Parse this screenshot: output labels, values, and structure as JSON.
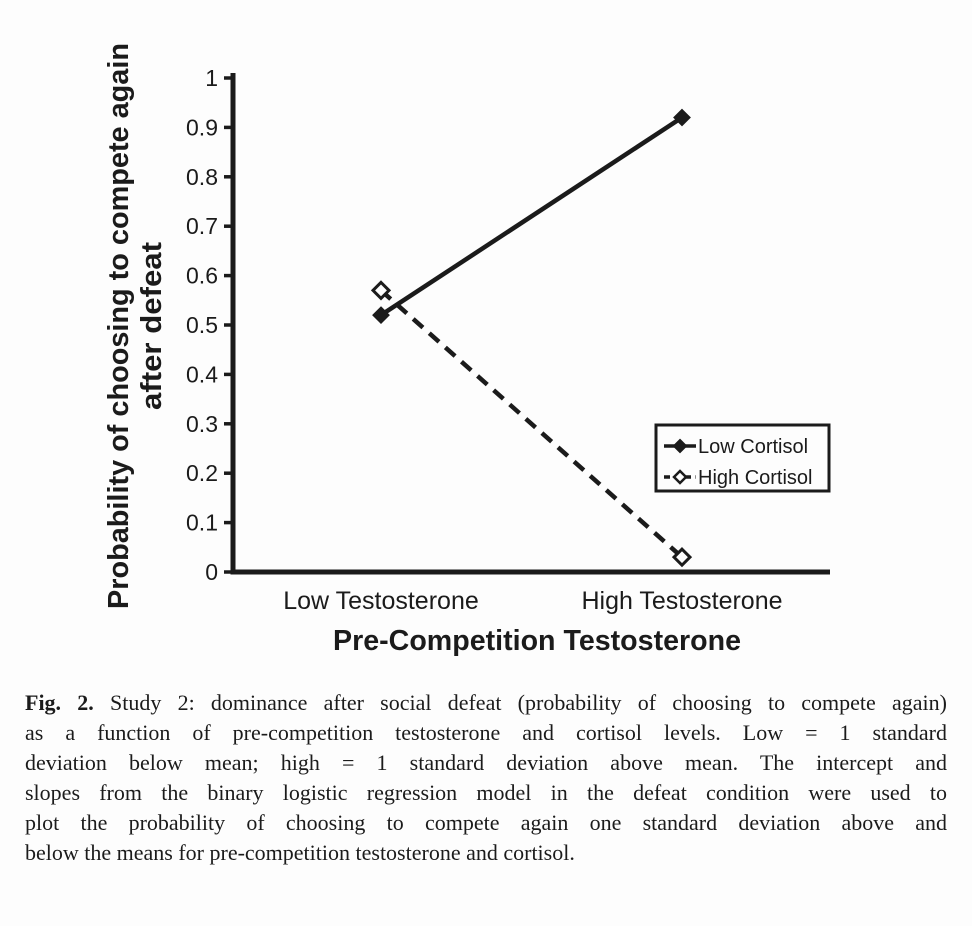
{
  "figure": {
    "caption_label": "Fig. 2.",
    "caption_line1": "Study 2: dominance after social defeat (probability of choosing to compete again)",
    "caption_lines": [
      "as a function of pre-competition testosterone and cortisol levels. Low = 1 standard",
      "deviation below mean; high = 1 standard deviation above mean. The intercept and",
      "slopes from the binary logistic regression model in the defeat condition were used to",
      "plot the probability of choosing to compete again one standard deviation above and",
      "below the means for pre-competition testosterone and cortisol."
    ]
  },
  "chart_data": {
    "type": "line",
    "categories": [
      "Low Testosterone",
      "High Testosterone"
    ],
    "series": [
      {
        "name": "Low Cortisol",
        "values": [
          0.52,
          0.92
        ],
        "line_style": "solid",
        "marker": "filled-diamond"
      },
      {
        "name": "High Cortisol",
        "values": [
          0.57,
          0.03
        ],
        "line_style": "dashed",
        "marker": "open-diamond"
      }
    ],
    "xlabel": "Pre-Competition Testosterone",
    "ylabel_lines": [
      "Probability of choosing to compete again",
      "after defeat"
    ],
    "ylim": [
      0,
      1
    ],
    "ytick_step": 0.1,
    "yticks": [
      "0",
      "0.1",
      "0.2",
      "0.3",
      "0.4",
      "0.5",
      "0.6",
      "0.7",
      "0.8",
      "0.9",
      "1"
    ],
    "legend": {
      "position": "right-middle",
      "entries": [
        "Low Cortisol",
        "High Cortisol"
      ]
    },
    "grid": false,
    "color": "#1b1b1b",
    "background": "#fdfdfd"
  }
}
